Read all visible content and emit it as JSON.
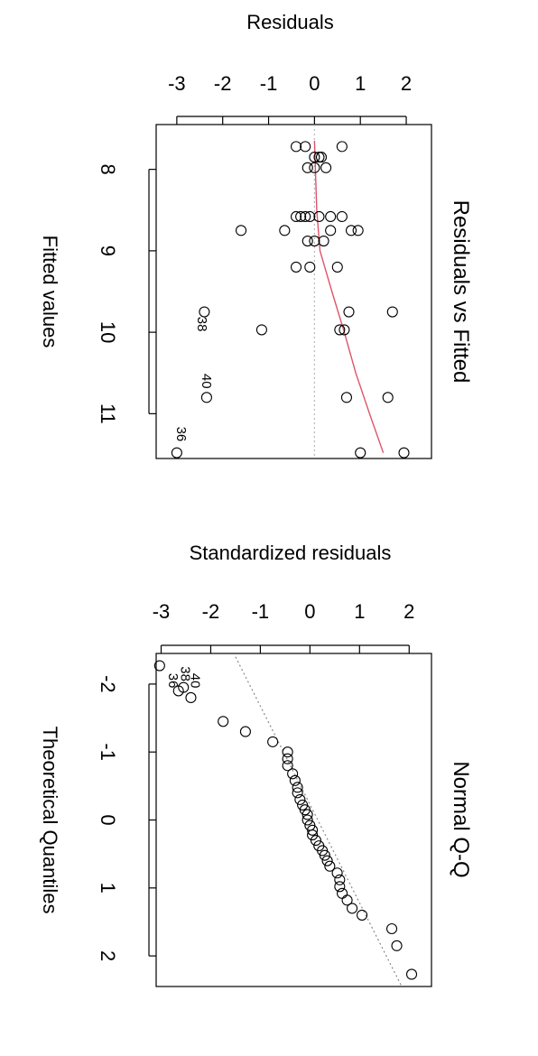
{
  "chart_data": [
    {
      "type": "scatter",
      "title": "Residuals vs Fitted",
      "xlabel": "Fitted values",
      "ylabel": "Residuals",
      "xlim": [
        7.45,
        11.55
      ],
      "ylim": [
        -3.45,
        2.55
      ],
      "x_ticks": [
        "8",
        "9",
        "10",
        "11"
      ],
      "y_ticks": [
        "-3",
        "-2",
        "-1",
        "0",
        "1",
        "2"
      ],
      "reference_line": 0,
      "point_labels": [
        {
          "text": "36",
          "x": 11.25,
          "y": -3.0
        },
        {
          "text": "38",
          "x": 9.9,
          "y": -2.55
        },
        {
          "text": "40",
          "x": 10.6,
          "y": -2.45
        }
      ],
      "points": [
        [
          7.72,
          -0.4
        ],
        [
          7.72,
          -0.2
        ],
        [
          7.72,
          0.6
        ],
        [
          7.85,
          0.0
        ],
        [
          7.85,
          0.1
        ],
        [
          7.85,
          0.15
        ],
        [
          7.98,
          -0.15
        ],
        [
          7.98,
          0.0
        ],
        [
          7.98,
          0.25
        ],
        [
          8.58,
          -0.4
        ],
        [
          8.58,
          -0.3
        ],
        [
          8.58,
          -0.2
        ],
        [
          8.58,
          -0.1
        ],
        [
          8.58,
          0.1
        ],
        [
          8.58,
          0.35
        ],
        [
          8.58,
          0.6
        ],
        [
          8.75,
          -1.6
        ],
        [
          8.75,
          -0.65
        ],
        [
          8.75,
          0.35
        ],
        [
          8.75,
          0.8
        ],
        [
          8.75,
          0.95
        ],
        [
          8.88,
          -0.15
        ],
        [
          8.88,
          0.0
        ],
        [
          8.88,
          0.2
        ],
        [
          9.2,
          -0.4
        ],
        [
          9.2,
          -0.1
        ],
        [
          9.2,
          0.5
        ],
        [
          9.75,
          -2.4
        ],
        [
          9.75,
          0.75
        ],
        [
          9.75,
          1.7
        ],
        [
          9.97,
          -1.15
        ],
        [
          9.97,
          0.55
        ],
        [
          9.97,
          0.65
        ],
        [
          10.8,
          -2.35
        ],
        [
          10.8,
          0.7
        ],
        [
          10.8,
          1.6
        ],
        [
          11.48,
          -3.0
        ],
        [
          11.48,
          1.0
        ],
        [
          11.48,
          1.95
        ]
      ],
      "smooth_line": [
        [
          7.65,
          0.0
        ],
        [
          8.0,
          0.02
        ],
        [
          8.5,
          0.05
        ],
        [
          9.0,
          0.12
        ],
        [
          9.5,
          0.38
        ],
        [
          10.0,
          0.65
        ],
        [
          10.5,
          0.9
        ],
        [
          11.0,
          1.2
        ],
        [
          11.48,
          1.5
        ]
      ],
      "colors": {
        "smooth": "#df536b",
        "reference": "#b8b8b8"
      }
    },
    {
      "type": "scatter",
      "title": "Normal Q-Q",
      "xlabel": "Theoretical Quantiles",
      "ylabel": "Standardized residuals",
      "xlim": [
        -2.45,
        2.45
      ],
      "ylim": [
        -3.1,
        2.45
      ],
      "x_ticks": [
        "-2",
        "-1",
        "0",
        "1",
        "2"
      ],
      "y_ticks": [
        "-3",
        "-2",
        "-1",
        "0",
        "1",
        "2"
      ],
      "reference_line_points": [
        [
          -2.4,
          -1.5
        ],
        [
          2.45,
          1.85
        ]
      ],
      "point_labels": [
        {
          "text": "36",
          "x": -2.05,
          "y": -2.85
        },
        {
          "text": "38",
          "x": -2.15,
          "y": -2.6
        },
        {
          "text": "40",
          "x": -2.05,
          "y": -2.4
        }
      ],
      "points": [
        [
          -2.27,
          -3.03
        ],
        [
          -1.95,
          -2.55
        ],
        [
          -1.9,
          -2.65
        ],
        [
          -1.8,
          -2.4
        ],
        [
          -1.45,
          -1.75
        ],
        [
          -1.3,
          -1.3
        ],
        [
          -1.15,
          -0.75
        ],
        [
          -1.0,
          -0.45
        ],
        [
          -0.9,
          -0.45
        ],
        [
          -0.8,
          -0.45
        ],
        [
          -0.68,
          -0.35
        ],
        [
          -0.58,
          -0.3
        ],
        [
          -0.48,
          -0.25
        ],
        [
          -0.4,
          -0.25
        ],
        [
          -0.3,
          -0.2
        ],
        [
          -0.22,
          -0.15
        ],
        [
          -0.15,
          -0.1
        ],
        [
          -0.08,
          -0.05
        ],
        [
          0.0,
          -0.05
        ],
        [
          0.08,
          0.0
        ],
        [
          0.15,
          0.05
        ],
        [
          0.22,
          0.05
        ],
        [
          0.3,
          0.12
        ],
        [
          0.38,
          0.18
        ],
        [
          0.45,
          0.25
        ],
        [
          0.52,
          0.3
        ],
        [
          0.6,
          0.35
        ],
        [
          0.68,
          0.4
        ],
        [
          0.78,
          0.55
        ],
        [
          0.88,
          0.6
        ],
        [
          0.98,
          0.6
        ],
        [
          1.08,
          0.65
        ],
        [
          1.18,
          0.75
        ],
        [
          1.3,
          0.85
        ],
        [
          1.4,
          1.05
        ],
        [
          1.6,
          1.65
        ],
        [
          1.85,
          1.75
        ],
        [
          2.27,
          2.05
        ]
      ],
      "colors": {
        "reference": "#888888"
      }
    }
  ]
}
